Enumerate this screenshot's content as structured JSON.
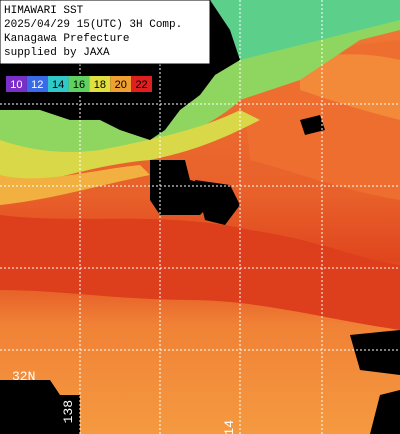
{
  "header": {
    "lines": [
      "HIMAWARI SST",
      "2025/04/29 15(UTC) 3H Comp.",
      "Kanagawa Prefecture",
      "supplied by JAXA"
    ]
  },
  "legend": {
    "labels": [
      "10",
      "12",
      "14",
      "16",
      "18",
      "20",
      "22"
    ]
  },
  "grid_labels": {
    "latitude": [
      "32N"
    ],
    "longitude": [
      "138",
      "14"
    ]
  }
}
